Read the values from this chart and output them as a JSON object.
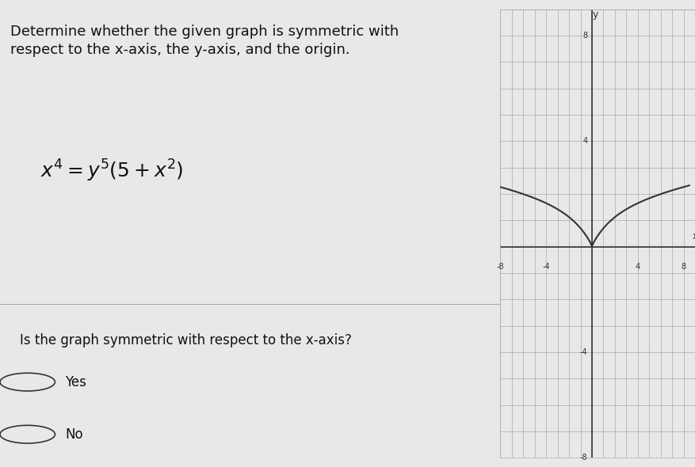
{
  "title_text": "Determine whether the given graph is symmetric with\nrespect to the x-axis, the y-axis, and the origin.",
  "equation_text": "$x^4 = y^5(5+x^2)$",
  "question_text": "Is the graph symmetric with respect to the x-axis?",
  "options": [
    "Yes",
    "No"
  ],
  "bg_color": "#e8e8e8",
  "left_bg_color": "#f0f0f0",
  "graph_bg_color": "#e8e8e8",
  "grid_color": "#999999",
  "axis_color": "#333333",
  "curve_color": "#333333",
  "text_color": "#111111",
  "xlim": [
    -8,
    9
  ],
  "ylim": [
    -8,
    9
  ],
  "xticks": [
    -8,
    -4,
    4,
    8
  ],
  "yticks": [
    -8,
    -4,
    4,
    8
  ],
  "title_fontsize": 13,
  "eq_fontsize": 16,
  "question_fontsize": 12,
  "option_fontsize": 12
}
